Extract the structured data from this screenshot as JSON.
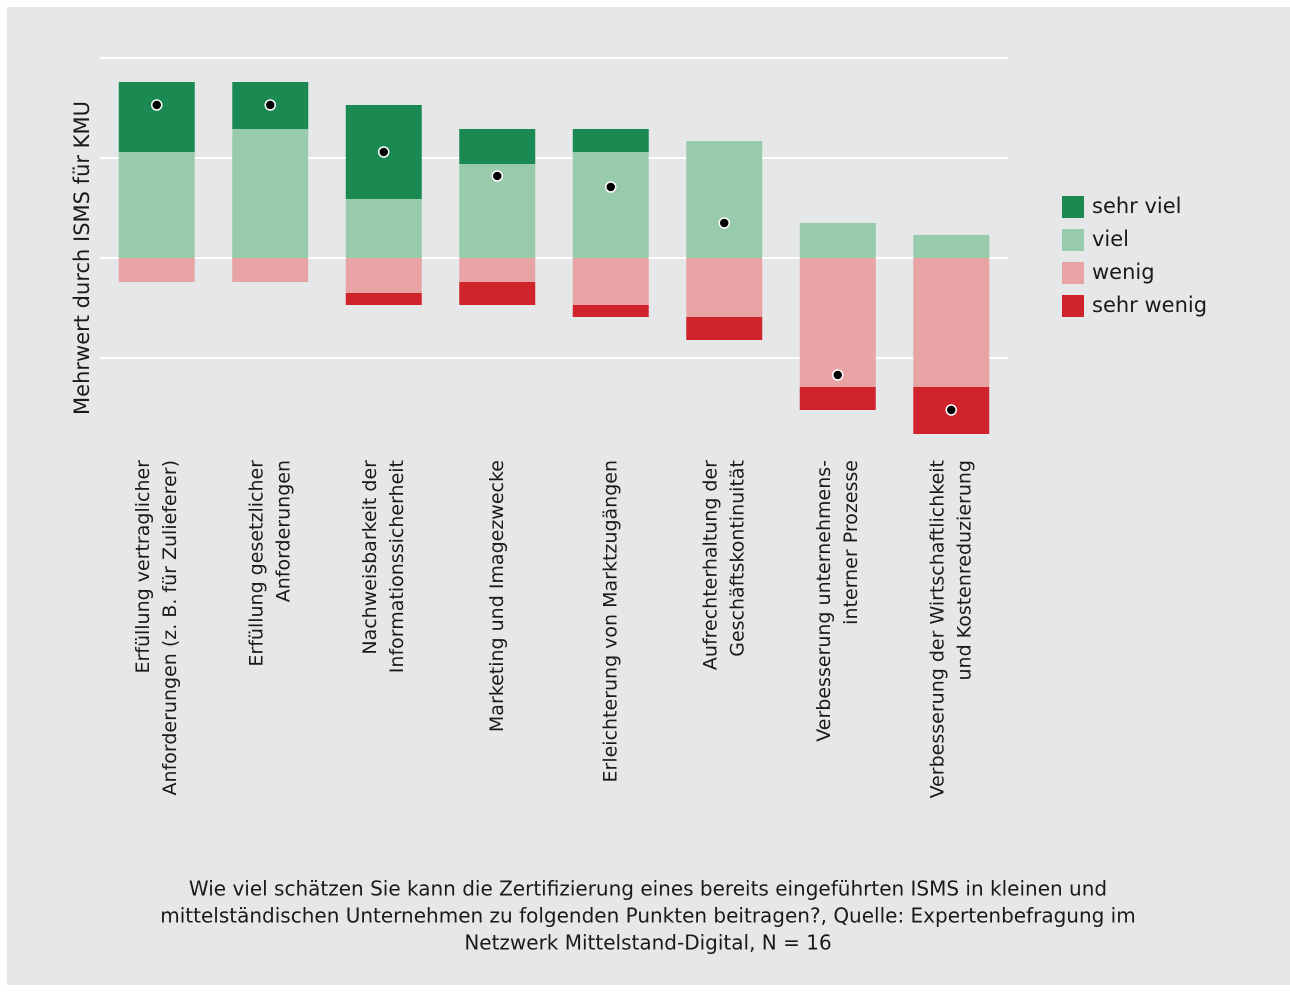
{
  "chart_data": {
    "type": "bar",
    "stacked": true,
    "ylabel": "Mehrwert durch ISMS für KMU",
    "categories": [
      [
        "Erfüllung vertraglicher",
        "Anforderungen (z. B. für Zulieferer)"
      ],
      [
        "Erfüllung gesetzlicher",
        "Anforderungen"
      ],
      [
        "Nachweisbarkeit der",
        "Informationssicherheit"
      ],
      [
        "Marketing und Imagezwecke"
      ],
      [
        "Erleichterung von Marktzugängen"
      ],
      [
        "Aufrechterhaltung der",
        "Geschäftskontinuität"
      ],
      [
        "Verbesserung unternehmens-",
        "interner Prozesse"
      ],
      [
        "Verbesserung der Wirtschaftlichkeit",
        "und Kostenreduzierung"
      ]
    ],
    "series": [
      {
        "name": "sehr viel",
        "color": "#1a8a52",
        "values": [
          35,
          23.5,
          47,
          17.5,
          11.5,
          0,
          0,
          0
        ]
      },
      {
        "name": "viel",
        "color": "#98cbac",
        "values": [
          53,
          64.5,
          29.5,
          47,
          53,
          58.5,
          17.5,
          11.5
        ]
      },
      {
        "name": "wenig",
        "color": "#e8a3a5",
        "values": [
          -12,
          -12,
          -17.5,
          -12,
          -23.5,
          -29.5,
          -64.5,
          -64.5
        ]
      },
      {
        "name": "sehr wenig",
        "color": "#d0232c",
        "values": [
          0,
          0,
          -6,
          -11.5,
          -6,
          -11.5,
          -11.5,
          -23.5
        ]
      }
    ],
    "points": {
      "color": "#000000",
      "values": [
        76.5,
        76.5,
        53,
        41,
        35.5,
        17.5,
        -58.5,
        -76
      ]
    },
    "ylim": [
      -90,
      100
    ],
    "yticks": [
      -50,
      0,
      50,
      100
    ],
    "grid": true,
    "legend": "right",
    "caption": [
      "Wie viel schätzen Sie kann die Zertifizierung eines bereits eingeführten ISMS in kleinen  und",
      "mittelständischen Unternehmen zu folgenden Punkten beitragen?, Quelle: Expertenbefragung im",
      "Netzwerk Mittelstand-Digital, N = 16"
    ]
  }
}
